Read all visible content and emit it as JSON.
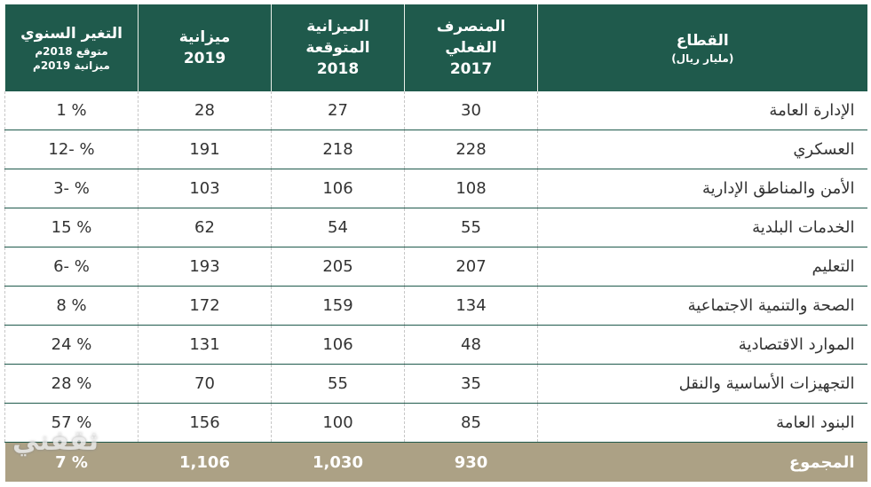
{
  "table": {
    "header": [
      [
        "القطاع",
        "(مليار ريال)"
      ],
      [
        "المنصرف",
        "الفعلي",
        "2017"
      ],
      [
        "الميزانية",
        "المتوقعة",
        "2018"
      ],
      [
        "ميزانية",
        "2019"
      ],
      [
        "التغير السنوي",
        "متوقع 2018م",
        "ميزانية 2019م"
      ]
    ],
    "rows": [
      [
        "الإدارة العامة",
        "30",
        "27",
        "28",
        "1 %"
      ],
      [
        "العسكري",
        "228",
        "218",
        "191",
        "12- %"
      ],
      [
        "الأمن والمناطق الإدارية",
        "108",
        "106",
        "103",
        "3- %"
      ],
      [
        "الخدمات البلدية",
        "55",
        "54",
        "62",
        "15 %"
      ],
      [
        "التعليم",
        "207",
        "205",
        "193",
        "6- %"
      ],
      [
        "الصحة والتنمية الاجتماعية",
        "134",
        "159",
        "172",
        "8 %"
      ],
      [
        "الموارد الاقتصادية",
        "48",
        "106",
        "131",
        "24 %"
      ],
      [
        "التجهيزات الأساسية والنقل",
        "35",
        "55",
        "70",
        "28 %"
      ],
      [
        "البنود العامة",
        "85",
        "100",
        "156",
        "57 %"
      ]
    ],
    "total": [
      "المجموع",
      "930",
      "1,030",
      "1,106",
      "7 %"
    ]
  },
  "watermark": "ثقفني"
}
